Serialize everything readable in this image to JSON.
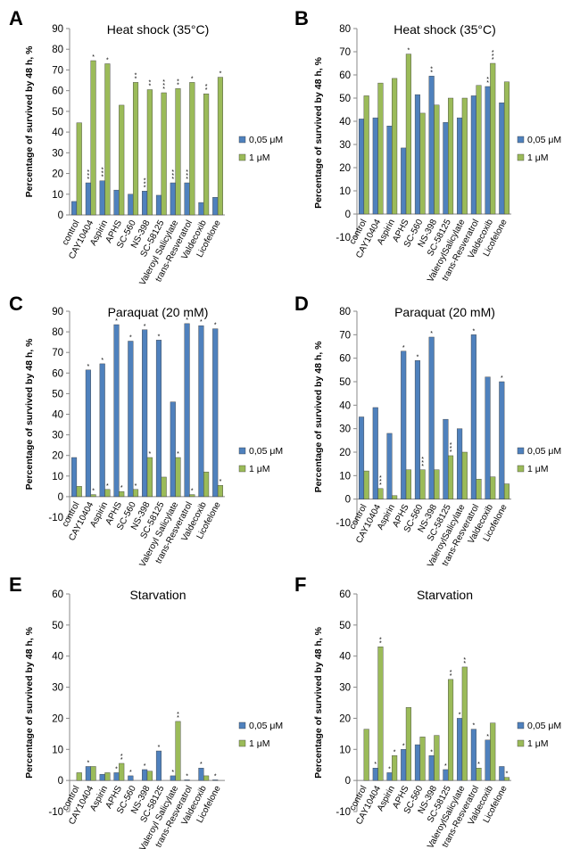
{
  "colors": {
    "series_05": "#4f81bd",
    "series_1": "#9bbb59",
    "axis": "#888888",
    "text": "#000000"
  },
  "chart_data": [
    {
      "panel_letter": "A",
      "type": "bar",
      "title": "Heat shock (35°C)",
      "ylabel": "Percentage of survived by 48 h, %",
      "ylim": [
        0,
        90
      ],
      "yticks": [
        0,
        10,
        20,
        30,
        40,
        50,
        60,
        70,
        80,
        90
      ],
      "grid": false,
      "legend_position": "right",
      "categories": [
        "control",
        "CAY10404",
        "Aspirin",
        "APHS",
        "SC-560",
        "NS-398",
        "SC-58125",
        "Valeroyl Salicylate",
        "trans-Resveratrol",
        "Valdecoxib",
        "Licofelone"
      ],
      "series": [
        {
          "name": "0,05 μM",
          "values": [
            6.5,
            15.5,
            16.5,
            12,
            10,
            11.5,
            9.5,
            15.5,
            15.5,
            6,
            8.5
          ],
          "annotations": [
            "",
            "***",
            "***",
            "",
            "",
            "***",
            "",
            "***",
            "***",
            "",
            ""
          ]
        },
        {
          "name": "1 μM",
          "values": [
            44.5,
            74.5,
            73,
            53,
            64,
            60.5,
            59,
            61,
            64,
            58.5,
            66.5
          ],
          "annotations": [
            "",
            "*",
            "*",
            "",
            "**",
            "**",
            "***",
            "**",
            "*",
            "**",
            "*"
          ]
        }
      ]
    },
    {
      "panel_letter": "B",
      "type": "bar",
      "title": "Heat shock (35°C)",
      "ylabel": "Percentage of survived by 48 h, %",
      "ylim": [
        -10,
        80
      ],
      "yticks": [
        -10,
        0,
        10,
        20,
        30,
        40,
        50,
        60,
        70,
        80
      ],
      "grid": false,
      "legend_position": "right",
      "categories": [
        "control",
        "CAY10404",
        "Aspirin",
        "APHS",
        "SC-560",
        "NS-398",
        "SC-58125",
        "ValeroylSalicylate",
        "trans-Resveratrol",
        "Valdecoxib",
        "Licofelone"
      ],
      "series": [
        {
          "name": "0,05 μM",
          "values": [
            41,
            41.5,
            38,
            28.5,
            51.5,
            59.5,
            39.5,
            41.5,
            51,
            55,
            48
          ],
          "annotations": [
            "",
            "",
            "",
            "",
            "",
            "**",
            "",
            "",
            "",
            "**",
            ""
          ]
        },
        {
          "name": "1 μM",
          "values": [
            51,
            56.5,
            58.5,
            69,
            43.5,
            47,
            50,
            50,
            55.5,
            65,
            57
          ],
          "annotations": [
            "",
            "",
            "",
            "*",
            "",
            "",
            "",
            "",
            "",
            "***",
            ""
          ]
        }
      ]
    },
    {
      "panel_letter": "C",
      "type": "bar",
      "title": "Paraquat (20 mM)",
      "ylabel": "Percentage of survived by 48 h, %",
      "ylim": [
        -10,
        90
      ],
      "yticks": [
        -10,
        0,
        10,
        20,
        30,
        40,
        50,
        60,
        70,
        80,
        90
      ],
      "grid": false,
      "legend_position": "right",
      "categories": [
        "control",
        "CAY10404",
        "Aspirin",
        "APHS",
        "SC-560",
        "NS-398",
        "SC-58125",
        "Valeroyl Salicylate",
        "trans-Resveratrol",
        "Valdecoxib",
        "Licofelone"
      ],
      "series": [
        {
          "name": "0,05 μM",
          "values": [
            19,
            61.5,
            64.5,
            83.5,
            75.5,
            81,
            76,
            46,
            84,
            83,
            81.5
          ],
          "annotations": [
            "",
            "*",
            "*",
            "*",
            "*",
            "*",
            "*",
            "",
            "*",
            "*",
            "*"
          ]
        },
        {
          "name": "1 μM",
          "values": [
            5,
            1,
            3.5,
            2.5,
            3.5,
            19,
            9.5,
            19,
            1,
            12,
            5.5
          ],
          "annotations": [
            "",
            "*",
            "*",
            "*",
            "*",
            "*",
            "",
            "*",
            "*",
            "",
            "*"
          ]
        }
      ]
    },
    {
      "panel_letter": "D",
      "type": "bar",
      "title": "Paraquat (20 mM)",
      "ylabel": "Percentage of survived by 48 h, %",
      "ylim": [
        -10,
        80
      ],
      "yticks": [
        -10,
        0,
        10,
        20,
        30,
        40,
        50,
        60,
        70,
        80
      ],
      "grid": false,
      "legend_position": "right",
      "categories": [
        "control",
        "CAY10404",
        "Aspirin",
        "APHS",
        "SC-560",
        "NS-398",
        "SC-58125",
        "ValeroylSalicylate",
        "trans-Resveratrol",
        "Valdecoxib",
        "Licofelone"
      ],
      "series": [
        {
          "name": "0,05 μM",
          "values": [
            35,
            39,
            28,
            63,
            59,
            69,
            34,
            30,
            70,
            52,
            50
          ],
          "annotations": [
            "",
            "",
            "",
            "*",
            "*",
            "*",
            "",
            "",
            "*",
            "",
            "*"
          ]
        },
        {
          "name": "1 μM",
          "values": [
            12,
            4.5,
            1.5,
            12.5,
            12.5,
            12.5,
            18.5,
            20,
            8.5,
            9.5,
            6.5
          ],
          "annotations": [
            "",
            "***",
            "",
            "",
            "***",
            "",
            "***",
            "",
            "",
            "",
            ""
          ]
        }
      ]
    },
    {
      "panel_letter": "E",
      "type": "bar",
      "title": "Starvation",
      "ylabel": "Percentage of survived by 48 h, %",
      "ylim": [
        -10,
        60
      ],
      "yticks": [
        -10,
        0,
        10,
        20,
        30,
        40,
        50,
        60
      ],
      "grid": false,
      "legend_position": "right",
      "categories": [
        "control",
        "CAY10404",
        "Aspirin",
        "APHS",
        "SC-560",
        "NS-398",
        "SC-58125",
        "Valeroyl Salicylate",
        "trans-Resveratrol",
        "Valdecoxib",
        "Licofelone"
      ],
      "series": [
        {
          "name": "0,05 μM",
          "values": [
            0,
            4.5,
            2,
            2.5,
            1.5,
            3.5,
            9.5,
            1.5,
            0.2,
            4,
            0.2
          ],
          "annotations": [
            "",
            "*",
            "",
            "*",
            "*",
            "*",
            "*",
            "*",
            "*",
            "*",
            "*"
          ]
        },
        {
          "name": "1 μM",
          "values": [
            2.5,
            4.5,
            2.5,
            5.5,
            0,
            3,
            0,
            19,
            0,
            1.5,
            0
          ],
          "annotations": [
            "",
            "",
            "",
            "**",
            "",
            "",
            "",
            "**",
            "",
            "",
            ""
          ]
        }
      ]
    },
    {
      "panel_letter": "F",
      "type": "bar",
      "title": "Starvation",
      "ylabel": "Percentage of survived by 48 h, %",
      "ylim": [
        -10,
        60
      ],
      "yticks": [
        -10,
        0,
        10,
        20,
        30,
        40,
        50,
        60
      ],
      "grid": false,
      "legend_position": "right",
      "categories": [
        "control",
        "CAY10404",
        "Aspirin",
        "APHS",
        "SC-560",
        "NS-398",
        "SC-58125",
        "ValeroylSalicylate",
        "trans-Resveratrol",
        "Valdecoxib",
        "Licofelone"
      ],
      "series": [
        {
          "name": "0,05 μM",
          "values": [
            0,
            4,
            2.5,
            10,
            11.5,
            8,
            3.5,
            20,
            16.5,
            13,
            4.5
          ],
          "annotations": [
            "",
            "*",
            "*",
            "*",
            "",
            "*",
            "*",
            "*",
            "*",
            "*",
            ""
          ]
        },
        {
          "name": "1 μM",
          "values": [
            16.5,
            43,
            8,
            23.5,
            14,
            14.5,
            32.5,
            36.5,
            4,
            18.5,
            1
          ],
          "annotations": [
            "",
            "**",
            "*",
            "",
            "",
            "",
            "**",
            "**",
            "*",
            "",
            "*"
          ]
        }
      ]
    }
  ]
}
